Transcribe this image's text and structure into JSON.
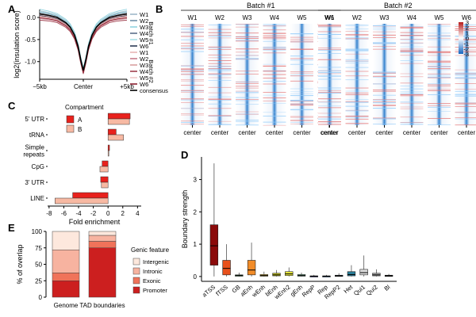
{
  "panels": {
    "A": "A",
    "B": "B",
    "C": "C",
    "D": "D",
    "E": "E"
  },
  "chart_data": [
    {
      "panel": "A",
      "type": "line",
      "ylabel": "log2(insulation score)",
      "xlabel": "Center",
      "x_ticks": [
        "−5kb",
        "Center",
        "+5kb"
      ],
      "y_ticks": [
        0.0,
        -0.5,
        -1.0
      ],
      "y_tick_labels": [
        "0.0",
        "-0.5",
        "-1.0"
      ],
      "ylim": [
        -1.4,
        0.18
      ],
      "x": [
        -5,
        -4,
        -3,
        -2,
        -1.5,
        -1,
        -0.6,
        -0.3,
        0,
        0.3,
        0.6,
        1,
        1.5,
        2,
        3,
        4,
        5
      ],
      "base_profile": [
        0.08,
        0.05,
        0.0,
        -0.12,
        -0.22,
        -0.4,
        -0.65,
        -0.95,
        -1.2,
        -0.95,
        -0.65,
        -0.4,
        -0.22,
        -0.12,
        0.0,
        0.05,
        0.08
      ],
      "series": [
        {
          "name": "W1",
          "group": "Batch #1",
          "color": "#9fb8c9",
          "offset": 0.04
        },
        {
          "name": "W2",
          "group": "Batch #1",
          "color": "#6f8fa8",
          "offset": 0.02
        },
        {
          "name": "W3",
          "group": "Batch #1",
          "color": "#8fd3df",
          "offset": 0.06
        },
        {
          "name": "W4",
          "group": "Batch #1",
          "color": "#5c6f8a",
          "offset": 0.0
        },
        {
          "name": "W5",
          "group": "Batch #1",
          "color": "#a8e0e8",
          "offset": 0.03
        },
        {
          "name": "W6",
          "group": "Batch #1",
          "color": "#2c3a57",
          "offset": -0.02
        },
        {
          "name": "W1",
          "group": "Batch #2",
          "color": "#e8b6b6",
          "offset": -0.04
        },
        {
          "name": "W2",
          "group": "Batch #2",
          "color": "#c77b8a",
          "offset": -0.06
        },
        {
          "name": "W3",
          "group": "Batch #2",
          "color": "#d9a0a0",
          "offset": -0.03
        },
        {
          "name": "W4",
          "group": "Batch #2",
          "color": "#a0404e",
          "offset": -0.08
        },
        {
          "name": "W5",
          "group": "Batch #2",
          "color": "#f0c8c8",
          "offset": -0.01
        },
        {
          "name": "W6",
          "group": "Batch #2",
          "color": "#8b2030",
          "offset": -0.05
        },
        {
          "name": "consensus",
          "group": "",
          "color": "#000000",
          "offset": 0.0
        }
      ],
      "legend_groups": [
        "Batch #1",
        "Batch #2"
      ]
    },
    {
      "panel": "B",
      "type": "heatmap",
      "batches": [
        "Batch #1",
        "Batch #2"
      ],
      "columns": [
        "W1",
        "W2",
        "W3",
        "W4",
        "W5",
        "W6",
        "W1",
        "W2",
        "W3",
        "W4",
        "W5",
        "W6"
      ],
      "x_label": "center",
      "colorbar": {
        "ticks": [
          "3",
          "2",
          "1",
          "0",
          "-1",
          "-2",
          "-3"
        ],
        "min": -3,
        "max": 3,
        "high_color": "#c62828",
        "mid_color": "#ffffff",
        "low_color": "#1565c0"
      }
    },
    {
      "panel": "C",
      "type": "bar",
      "title": "Compartment",
      "categories": [
        "5' UTR",
        "tRNA",
        "Simple repeats",
        "CpG",
        "3' UTR",
        "LINE"
      ],
      "category_labels": [
        [
          "5' UTR"
        ],
        [
          "tRNA"
        ],
        [
          "Simple",
          "repeats"
        ],
        [
          "CpG"
        ],
        [
          "3' UTR"
        ],
        [
          "LINE"
        ]
      ],
      "series": [
        {
          "name": "A",
          "color": "#e8211c",
          "values": [
            3.0,
            1.1,
            0.2,
            -0.8,
            -1.0,
            -4.8
          ]
        },
        {
          "name": "B",
          "color": "#f7b9a3",
          "values": [
            2.9,
            2.1,
            0.1,
            -1.1,
            -0.9,
            -7.2
          ]
        }
      ],
      "xlabel": "Fold enrichment",
      "xlim": [
        -8.2,
        4.5
      ],
      "x_ticks": [
        -8,
        -6,
        -4,
        -2,
        0,
        2,
        4
      ],
      "x_tick_labels": [
        "-8",
        "-6",
        "-4",
        "-2",
        "0",
        "2",
        "4"
      ]
    },
    {
      "panel": "D",
      "type": "box",
      "ylabel": "Boundary strength",
      "ylim": [
        -0.15,
        3.7
      ],
      "y_ticks": [
        0,
        1,
        2,
        3
      ],
      "y_tick_labels": [
        "0",
        "1",
        "2",
        "3"
      ],
      "categories": [
        "aTSS",
        "fTSS",
        "GB",
        "aEnh",
        "wEnh",
        "bEnh",
        "wEnh2",
        "gEnh",
        "RepP",
        "Rep",
        "RepP2",
        "Het",
        "Qui1",
        "Qui2",
        "Bl"
      ],
      "boxes": [
        {
          "label": "aTSS",
          "color": "#8b0a0a",
          "whisker_low": 0.0,
          "q1": 0.35,
          "median": 0.95,
          "q3": 1.6,
          "whisker_high": 3.5
        },
        {
          "label": "fTSS",
          "color": "#e8511c",
          "whisker_low": 0.0,
          "q1": 0.05,
          "median": 0.25,
          "q3": 0.5,
          "whisker_high": 1.0
        },
        {
          "label": "GB",
          "color": "#2e8b3a",
          "whisker_low": 0.0,
          "q1": 0.01,
          "median": 0.03,
          "q3": 0.05,
          "whisker_high": 0.12
        },
        {
          "label": "aEnh",
          "color": "#f28c28",
          "whisker_low": 0.0,
          "q1": 0.05,
          "median": 0.2,
          "q3": 0.5,
          "whisker_high": 1.05
        },
        {
          "label": "wEnh",
          "color": "#f2c028",
          "whisker_low": 0.0,
          "q1": 0.01,
          "median": 0.03,
          "q3": 0.06,
          "whisker_high": 0.15
        },
        {
          "label": "bEnh",
          "color": "#c8c81c",
          "whisker_low": 0.0,
          "q1": 0.02,
          "median": 0.05,
          "q3": 0.1,
          "whisker_high": 0.2
        },
        {
          "label": "wEnh2",
          "color": "#e8e83c",
          "whisker_low": 0.0,
          "q1": 0.03,
          "median": 0.08,
          "q3": 0.15,
          "whisker_high": 0.28
        },
        {
          "label": "gEnh",
          "color": "#7fc8a0",
          "whisker_low": 0.0,
          "q1": 0.01,
          "median": 0.03,
          "q3": 0.06,
          "whisker_high": 0.12
        },
        {
          "label": "RepP",
          "color": "#5a5ab0",
          "whisker_low": 0.0,
          "q1": 0.005,
          "median": 0.01,
          "q3": 0.02,
          "whisker_high": 0.05
        },
        {
          "label": "Rep",
          "color": "#3a6ea8",
          "whisker_low": 0.0,
          "q1": 0.005,
          "median": 0.01,
          "q3": 0.02,
          "whisker_high": 0.05
        },
        {
          "label": "RepP2",
          "color": "#7a9cc8",
          "whisker_low": 0.0,
          "q1": 0.01,
          "median": 0.02,
          "q3": 0.04,
          "whisker_high": 0.1
        },
        {
          "label": "Het",
          "color": "#2a7f9a",
          "whisker_low": 0.0,
          "q1": 0.02,
          "median": 0.06,
          "q3": 0.15,
          "whisker_high": 0.35
        },
        {
          "label": "Qui1",
          "color": "#dcdcdc",
          "whisker_low": 0.0,
          "q1": 0.05,
          "median": 0.12,
          "q3": 0.22,
          "whisker_high": 0.65
        },
        {
          "label": "Qui2",
          "color": "#aaaaaa",
          "whisker_low": 0.0,
          "q1": 0.02,
          "median": 0.05,
          "q3": 0.1,
          "whisker_high": 0.22
        },
        {
          "label": "Bl",
          "color": "#555555",
          "whisker_low": 0.0,
          "q1": 0.01,
          "median": 0.02,
          "q3": 0.04,
          "whisker_high": 0.08
        }
      ],
      "x_tick_labels_shown": [
        "aTSS",
        "fTSS",
        "GB",
        "aEnh",
        "wEnh",
        "bEnh",
        "wEnh2",
        "gEnh",
        "RepP",
        "Rep",
        "RepP2",
        "Het",
        "Qui1",
        "Qui2",
        "Bl"
      ]
    },
    {
      "panel": "E",
      "type": "bar",
      "stacked": true,
      "categories": [
        "Genome",
        "TAD boundaries"
      ],
      "ylabel": "% of overlap",
      "ylim": [
        0,
        100
      ],
      "y_ticks": [
        0,
        25,
        50,
        75,
        100
      ],
      "legend_title": "Genic feature",
      "series": [
        {
          "name": "Promoter",
          "color": "#cc1f1f",
          "values": [
            25,
            75
          ]
        },
        {
          "name": "Exonic",
          "color": "#f0735a",
          "values": [
            12,
            10
          ]
        },
        {
          "name": "Intronic",
          "color": "#f7b3a0",
          "values": [
            35,
            9
          ]
        },
        {
          "name": "Intergenic",
          "color": "#fde8dd",
          "values": [
            28,
            6
          ]
        }
      ],
      "legend_order": [
        "Intergenic",
        "Intronic",
        "Exonic",
        "Promoter"
      ]
    }
  ]
}
